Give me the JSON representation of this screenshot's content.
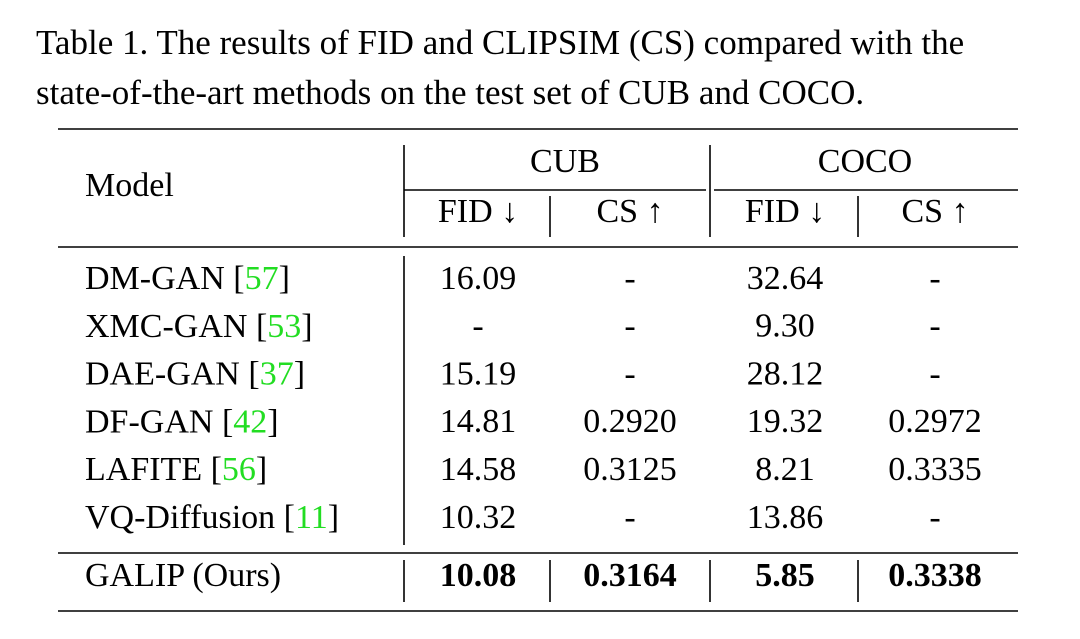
{
  "caption": [
    "Table 1. The results of FID and CLIPSIM (CS) compared with the",
    "state-of-the-art methods on the test set of CUB and COCO."
  ],
  "table": {
    "header": {
      "model": "Model",
      "groups": [
        "CUB",
        "COCO"
      ],
      "metrics": [
        "FID ↓",
        "CS ↑",
        "FID ↓",
        "CS ↑"
      ]
    },
    "rows": [
      {
        "model": [
          "DM-GAN [",
          "57",
          "]"
        ],
        "cells": [
          "16.09",
          "-",
          "32.64",
          "-"
        ]
      },
      {
        "model": [
          "XMC-GAN [",
          "53",
          "]"
        ],
        "cells": [
          "-",
          "-",
          "9.30",
          "-"
        ]
      },
      {
        "model": [
          "DAE-GAN [",
          "37",
          "]"
        ],
        "cells": [
          "15.19",
          "-",
          "28.12",
          "-"
        ]
      },
      {
        "model": [
          "DF-GAN [",
          "42",
          "]"
        ],
        "cells": [
          "14.81",
          "0.2920",
          "19.32",
          "0.2972"
        ]
      },
      {
        "model": [
          "LAFITE [",
          "56",
          "]"
        ],
        "cells": [
          "14.58",
          "0.3125",
          "8.21",
          "0.3335"
        ]
      },
      {
        "model": [
          "VQ-Diffusion [",
          "11",
          "]"
        ],
        "cells": [
          "10.32",
          "-",
          "13.86",
          "-"
        ]
      }
    ],
    "ours": {
      "model": "GALIP (Ours)",
      "cells": [
        "10.08",
        "0.3164",
        "5.85",
        "0.3338"
      ]
    }
  }
}
